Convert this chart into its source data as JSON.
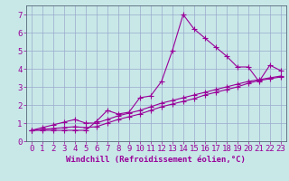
{
  "xlabel": "Windchill (Refroidissement éolien,°C)",
  "background_color": "#c8e8e8",
  "line_color": "#990099",
  "grid_color": "#99aacc",
  "x_values": [
    0,
    1,
    2,
    3,
    4,
    5,
    6,
    7,
    8,
    9,
    10,
    11,
    12,
    13,
    14,
    15,
    16,
    17,
    18,
    19,
    20,
    21,
    22,
    23
  ],
  "series1": [
    0.6,
    0.6,
    0.6,
    0.6,
    0.6,
    0.6,
    1.1,
    1.7,
    1.5,
    1.6,
    2.4,
    2.5,
    3.3,
    5.0,
    7.0,
    6.2,
    5.7,
    5.2,
    4.7,
    4.1,
    4.1,
    3.3,
    4.2,
    3.9
  ],
  "series2": [
    0.6,
    0.75,
    0.9,
    1.05,
    1.2,
    1.0,
    1.0,
    1.2,
    1.4,
    1.55,
    1.7,
    1.9,
    2.1,
    2.25,
    2.4,
    2.55,
    2.7,
    2.85,
    3.0,
    3.15,
    3.3,
    3.4,
    3.5,
    3.6
  ],
  "series3": [
    0.6,
    0.65,
    0.7,
    0.75,
    0.8,
    0.75,
    0.8,
    1.0,
    1.2,
    1.35,
    1.5,
    1.7,
    1.9,
    2.05,
    2.2,
    2.35,
    2.55,
    2.7,
    2.85,
    3.0,
    3.2,
    3.35,
    3.45,
    3.55
  ],
  "ylim": [
    0,
    7.5
  ],
  "xlim": [
    -0.5,
    23.5
  ],
  "yticks": [
    0,
    1,
    2,
    3,
    4,
    5,
    6,
    7
  ],
  "xticks": [
    0,
    1,
    2,
    3,
    4,
    5,
    6,
    7,
    8,
    9,
    10,
    11,
    12,
    13,
    14,
    15,
    16,
    17,
    18,
    19,
    20,
    21,
    22,
    23
  ],
  "marker": "+",
  "marker_size": 4,
  "line_width": 0.8,
  "font_size_xlabel": 6.5,
  "font_size_ticks": 6.5
}
